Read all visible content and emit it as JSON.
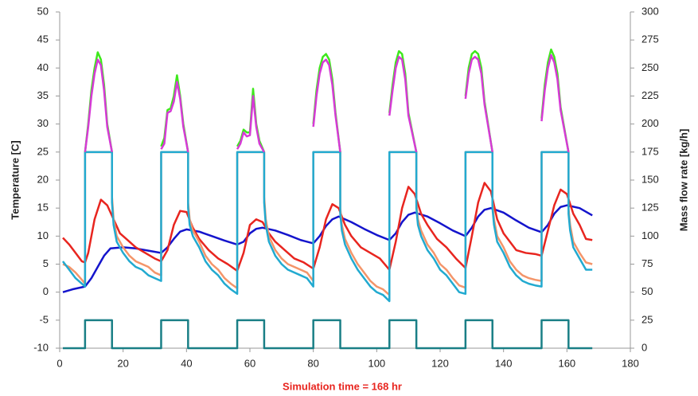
{
  "chart_data": {
    "type": "line",
    "xlabel": "Simulation time = 168 hr",
    "xlabel_color": "#e8251f",
    "ylabel": "Temperature [C]",
    "y2label": "Mass flow rate [kg/h]",
    "xlim": [
      0,
      180
    ],
    "xticks": [
      0,
      20,
      40,
      60,
      80,
      100,
      120,
      140,
      160,
      180
    ],
    "ylim": [
      -10,
      50
    ],
    "yticks": [
      -10,
      -5,
      0,
      5,
      10,
      15,
      20,
      25,
      30,
      35,
      40,
      45,
      50
    ],
    "y2lim": [
      0,
      300
    ],
    "y2ticks": [
      0,
      25,
      50,
      75,
      100,
      125,
      150,
      175,
      200,
      225,
      250,
      275,
      300
    ],
    "grid": false,
    "series": [
      {
        "color": "#1a7f86",
        "axis": "y2",
        "x": [
          1,
          8,
          8,
          16.5,
          16.5,
          32,
          32,
          40.5,
          40.5,
          56,
          56,
          64.5,
          64.5,
          80,
          80,
          88.5,
          88.5,
          104,
          104,
          112.5,
          112.5,
          128,
          128,
          136.5,
          136.5,
          152,
          152,
          160.5,
          160.5,
          168
        ],
        "values": [
          0,
          0,
          25,
          25,
          0,
          0,
          25,
          25,
          0,
          0,
          25,
          25,
          0,
          0,
          25,
          25,
          0,
          0,
          25,
          25,
          0,
          0,
          25,
          25,
          0,
          0,
          25,
          25,
          0,
          0
        ]
      },
      {
        "color": "#1414cc",
        "x": [
          1,
          4,
          8,
          10,
          12,
          14,
          16,
          20,
          24,
          28,
          32,
          34,
          36,
          38,
          40,
          44,
          48,
          52,
          56,
          58,
          60,
          62,
          64,
          68,
          72,
          76,
          80,
          82,
          84,
          86,
          88,
          92,
          96,
          100,
          104,
          106,
          108,
          110,
          112,
          116,
          120,
          124,
          128,
          130,
          132,
          134,
          136,
          140,
          144,
          148,
          152,
          154,
          156,
          158,
          160,
          164,
          168
        ],
        "values": [
          0,
          0.5,
          1,
          2.5,
          4.5,
          6.5,
          7.8,
          8,
          7.8,
          7.4,
          7,
          8,
          9.5,
          10.8,
          11.2,
          10.8,
          10,
          9.2,
          8.5,
          9,
          10.5,
          11.3,
          11.5,
          11,
          10.2,
          9.3,
          8.7,
          10,
          11.8,
          13,
          13.5,
          12.5,
          11.3,
          10.2,
          9.3,
          10.5,
          12.5,
          13.8,
          14.2,
          13.5,
          12.3,
          11,
          10,
          11.5,
          13.5,
          14.7,
          15,
          14.2,
          12.8,
          11.5,
          10.7,
          12,
          14,
          15.2,
          15.5,
          15,
          13.7
        ]
      },
      {
        "color": "#e8251f",
        "x": [
          1,
          3,
          5,
          7,
          8,
          9,
          11,
          13,
          15,
          17,
          19,
          21,
          24,
          27,
          30,
          32,
          34,
          36,
          38,
          40,
          42,
          44,
          47,
          50,
          53,
          56,
          58,
          60,
          62,
          64,
          66,
          68,
          71,
          74,
          77,
          80,
          82,
          84,
          86,
          88,
          90,
          92,
          95,
          98,
          101,
          104,
          106,
          108,
          110,
          112,
          114,
          116,
          119,
          122,
          125,
          128,
          130,
          132,
          134,
          136,
          138,
          140,
          142,
          144,
          147,
          150,
          152,
          154,
          156,
          158,
          160,
          162,
          164,
          166,
          168
        ],
        "values": [
          9.7,
          8.5,
          7,
          5.5,
          5.3,
          7,
          13,
          16.5,
          15.5,
          13,
          10.5,
          9.5,
          8,
          7,
          6,
          5.5,
          7.5,
          12,
          14.5,
          14.3,
          11.5,
          9.5,
          7.5,
          6,
          5,
          3.8,
          7,
          12,
          13,
          12.5,
          10.5,
          9,
          7.5,
          6,
          5.3,
          4.2,
          8,
          13,
          15.7,
          15,
          12,
          10,
          8,
          7,
          6,
          4,
          9,
          15,
          18.8,
          17.5,
          14,
          12,
          9.5,
          8,
          6,
          4.3,
          10,
          16,
          19.5,
          18,
          13,
          10.5,
          9,
          7.5,
          7,
          6.8,
          6.5,
          11,
          15.5,
          18.3,
          17.5,
          14,
          12,
          9.5,
          9.3
        ]
      },
      {
        "color": "#f4956a",
        "x": [
          1,
          3,
          5,
          7,
          8,
          8,
          16.5,
          16.5,
          17,
          18,
          20,
          22,
          24,
          26,
          28,
          30,
          32,
          32,
          40.5,
          40.5,
          41,
          42,
          44,
          46,
          48,
          50,
          52,
          54,
          56,
          56,
          64.5,
          64.5,
          65,
          66,
          68,
          70,
          72,
          76,
          78,
          80,
          80,
          88.5,
          88.5,
          89,
          90,
          92,
          94,
          96,
          98,
          100,
          102,
          104,
          104,
          112.5,
          112.5,
          113,
          114,
          116,
          118,
          120,
          122,
          124,
          126,
          128,
          128,
          136.5,
          136.5,
          137,
          138,
          140,
          142,
          144,
          146,
          148,
          150,
          152,
          152,
          160.5,
          160.5,
          161,
          162,
          164,
          166,
          168
        ],
        "values": [
          5,
          4.5,
          3.5,
          2.2,
          1.5,
          25,
          25,
          17,
          13,
          10,
          8,
          6.5,
          5.5,
          5,
          4.5,
          3.5,
          3,
          25,
          25,
          16,
          13,
          11,
          9,
          6.5,
          5,
          4,
          2.5,
          1.5,
          0.7,
          25,
          25,
          17,
          13,
          10,
          7.5,
          6,
          5,
          4,
          3.5,
          2,
          25,
          25,
          15,
          12,
          9.5,
          7,
          5,
          3.5,
          2,
          1,
          0.5,
          -0.5,
          25,
          25,
          16,
          13,
          11,
          8.5,
          7,
          5,
          4,
          2.5,
          1.2,
          0.8,
          25,
          25,
          16,
          13,
          10,
          8,
          5.5,
          4,
          3,
          2.5,
          2.2,
          2,
          25,
          25,
          15,
          12,
          9,
          7,
          5.3,
          5
        ]
      },
      {
        "color": "#22aad0",
        "x": [
          1,
          3,
          5,
          7,
          8,
          8,
          16.5,
          16.5,
          17,
          18,
          20,
          22,
          24,
          26,
          28,
          30,
          32,
          32,
          40.5,
          40.5,
          41,
          42,
          44,
          46,
          48,
          50,
          52,
          54,
          56,
          56,
          64.5,
          64.5,
          65,
          66,
          68,
          70,
          72,
          76,
          78,
          80,
          80,
          88.5,
          88.5,
          89,
          90,
          92,
          94,
          96,
          98,
          100,
          102,
          104,
          104,
          112.5,
          112.5,
          113,
          114,
          116,
          118,
          120,
          122,
          124,
          126,
          128,
          128,
          136.5,
          136.5,
          137,
          138,
          140,
          142,
          144,
          146,
          148,
          150,
          152,
          152,
          160.5,
          160.5,
          161,
          162,
          164,
          166,
          168
        ],
        "values": [
          5.5,
          4,
          2.5,
          1.5,
          1,
          25,
          25,
          16,
          12,
          9,
          7,
          5.5,
          4.5,
          4,
          3,
          2.5,
          2,
          25,
          25,
          15,
          12,
          10,
          8,
          5.5,
          4,
          3,
          1.5,
          0.5,
          -0.3,
          25,
          25,
          16,
          12,
          9,
          6.5,
          5,
          4,
          3,
          2.5,
          1,
          25,
          25,
          14,
          11,
          8.5,
          6,
          4,
          2.5,
          1,
          0,
          -0.5,
          -1.6,
          25,
          25,
          15,
          12,
          10,
          7.5,
          6,
          4,
          3,
          1.5,
          0,
          -0.3,
          25,
          25,
          15,
          12,
          9,
          7,
          4.5,
          3,
          2,
          1.5,
          1.2,
          1,
          25,
          25,
          14,
          11,
          8,
          6,
          4,
          4
        ]
      },
      {
        "color": "#3ee81c",
        "x": [
          8,
          9,
          10,
          11,
          12,
          13,
          14,
          15,
          16.5,
          24,
          32,
          33,
          34,
          35,
          36,
          37,
          38,
          39,
          40.5,
          48,
          56,
          57,
          58,
          59,
          60,
          61,
          62,
          63,
          64.5,
          72,
          80,
          81,
          82,
          83,
          84,
          85,
          86,
          87,
          88.5,
          96,
          104,
          105,
          106,
          107,
          108,
          109,
          110,
          112.5,
          120,
          128,
          129,
          130,
          131,
          132,
          133,
          134,
          136.5,
          144,
          152,
          153,
          154,
          155,
          156,
          157,
          158,
          160.5
        ],
        "values": [
          25,
          30,
          36,
          40,
          42.8,
          41.5,
          37,
          30,
          25,
          null,
          26,
          27.5,
          32.5,
          32.8,
          35,
          38.7,
          35,
          30,
          25,
          null,
          26,
          27,
          29,
          28.5,
          28.5,
          36.3,
          30,
          27,
          25,
          null,
          30,
          36,
          40,
          42,
          42.5,
          41.5,
          38,
          32,
          25,
          null,
          32,
          37,
          41,
          43,
          42.5,
          39,
          32,
          25,
          null,
          35,
          40,
          42.5,
          43,
          42.5,
          40,
          34,
          25,
          null,
          31,
          37,
          41,
          43.3,
          42,
          39,
          33,
          25
        ]
      },
      {
        "color": "#d63ad6",
        "x": [
          8,
          9,
          10,
          11,
          12,
          13,
          14,
          15,
          16.5,
          24,
          32,
          33,
          34,
          35,
          36,
          37,
          38,
          39,
          40.5,
          48,
          56,
          57,
          58,
          59,
          60,
          61,
          62,
          63,
          64.5,
          72,
          80,
          81,
          82,
          83,
          84,
          85,
          86,
          87,
          88.5,
          96,
          104,
          105,
          106,
          107,
          108,
          109,
          110,
          112.5,
          120,
          128,
          129,
          130,
          131,
          132,
          133,
          134,
          136.5,
          144,
          152,
          153,
          154,
          155,
          156,
          157,
          158,
          160.5
        ],
        "values": [
          25,
          29.5,
          35,
          39,
          41.5,
          40.5,
          36,
          29.5,
          25,
          null,
          25.5,
          26.5,
          32,
          32.3,
          34,
          37.5,
          34.5,
          29.5,
          25,
          null,
          25.5,
          26.5,
          28.5,
          27.8,
          28,
          35,
          29.5,
          26.5,
          25,
          null,
          29.5,
          35,
          39,
          41,
          41.5,
          40.5,
          37,
          31.5,
          25,
          null,
          31.5,
          36,
          40,
          42,
          41.5,
          38,
          31.5,
          25,
          null,
          34.5,
          39,
          41.5,
          42,
          41.5,
          39,
          33.5,
          25,
          null,
          30.5,
          36,
          40,
          42.3,
          41,
          38,
          32.5,
          25
        ]
      }
    ]
  }
}
